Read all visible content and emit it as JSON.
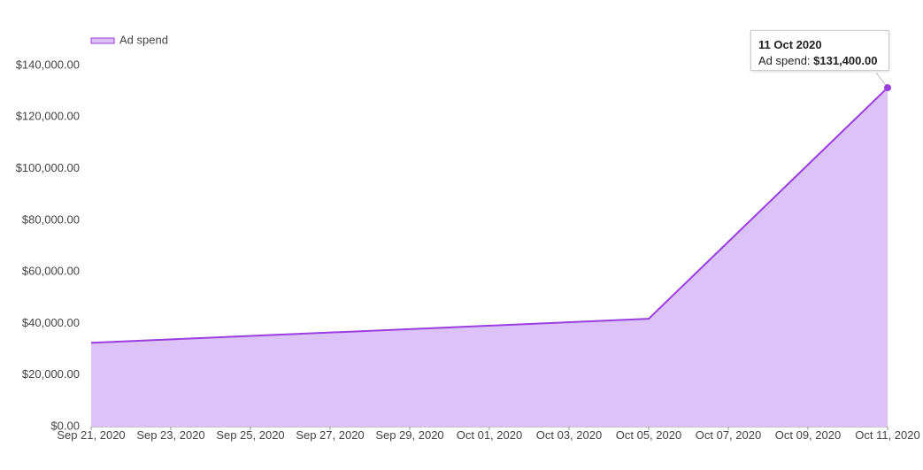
{
  "chart_data": {
    "type": "area",
    "x": [
      "Sep 21, 2020",
      "Oct 05, 2020",
      "Oct 11, 2020"
    ],
    "series": [
      {
        "name": "Ad spend",
        "color": "#9a3ee0",
        "fill": "#dcc2f7",
        "values": [
          32500,
          41800,
          131400
        ]
      }
    ],
    "xlim": [
      "Sep 21, 2020",
      "Oct 11, 2020"
    ],
    "xticks": [
      "Sep 21, 2020",
      "Sep 23, 2020",
      "Sep 25, 2020",
      "Sep 27, 2020",
      "Sep 29, 2020",
      "Oct 01, 2020",
      "Oct 03, 2020",
      "Oct 05, 2020",
      "Oct 07, 2020",
      "Oct 09, 2020",
      "Oct 11, 2020"
    ],
    "ylim": [
      0,
      140000
    ],
    "yticks": [
      {
        "value": 0,
        "label": "$0.00"
      },
      {
        "value": 20000,
        "label": "$20,000.00"
      },
      {
        "value": 40000,
        "label": "$40,000.00"
      },
      {
        "value": 60000,
        "label": "$60,000.00"
      },
      {
        "value": 80000,
        "label": "$80,000.00"
      },
      {
        "value": 100000,
        "label": "$100,000.00"
      },
      {
        "value": 120000,
        "label": "$120,000.00"
      },
      {
        "value": 140000,
        "label": "$140,000.00"
      }
    ],
    "grid": false,
    "legend": "top-left",
    "tooltip": {
      "title": "11 Oct 2020",
      "text": "Ad spend:",
      "value": "$131,400.00"
    }
  }
}
